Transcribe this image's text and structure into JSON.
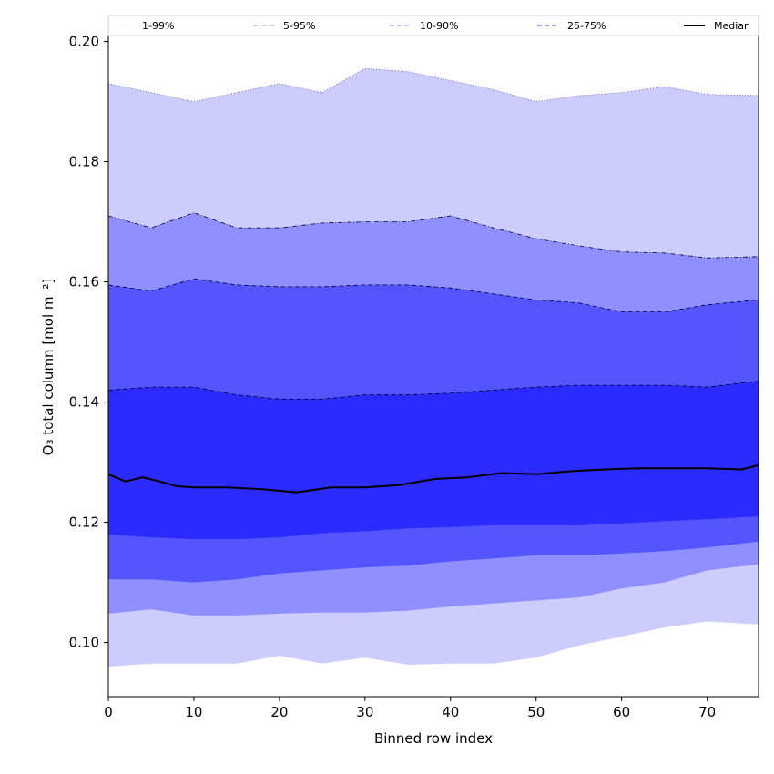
{
  "chart_data": {
    "type": "area",
    "xlabel": "Binned row index",
    "ylabel": "O₃ total column [mol m⁻²]",
    "xlim": [
      0,
      76
    ],
    "ylim": [
      0.091,
      0.201
    ],
    "x_ticks": [
      0,
      10,
      20,
      30,
      40,
      50,
      60,
      70
    ],
    "y_ticks": [
      0.1,
      0.12,
      0.14,
      0.16,
      0.18,
      0.2
    ],
    "y_tick_labels": [
      "0.10",
      "0.12",
      "0.14",
      "0.16",
      "0.18",
      "0.20"
    ],
    "legend_position": "top, spanning full width",
    "grid": false,
    "x_knots": [
      0,
      5,
      10,
      15,
      20,
      25,
      30,
      35,
      40,
      45,
      50,
      55,
      60,
      65,
      70,
      76
    ],
    "bands": [
      {
        "name": "1-99%",
        "color": "#ccccff",
        "line_style": "dotted",
        "lower": [
          0.096,
          0.0965,
          0.0965,
          0.0965,
          0.0978,
          0.0965,
          0.0975,
          0.0963,
          0.0965,
          0.0965,
          0.0975,
          0.0995,
          0.101,
          0.1025,
          0.1035,
          0.103
        ],
        "upper": [
          0.193,
          0.1915,
          0.19,
          0.1915,
          0.193,
          0.1915,
          0.1955,
          0.195,
          0.1935,
          0.192,
          0.19,
          0.191,
          0.1915,
          0.1925,
          0.1912,
          0.191
        ]
      },
      {
        "name": "5-95%",
        "color": "#8f8fff",
        "line_style": "dash-dot",
        "lower": [
          0.1048,
          0.1055,
          0.1045,
          0.1045,
          0.1048,
          0.105,
          0.105,
          0.1053,
          0.106,
          0.1065,
          0.107,
          0.1075,
          0.109,
          0.11,
          0.112,
          0.113
        ],
        "upper": [
          0.171,
          0.169,
          0.1715,
          0.169,
          0.169,
          0.1698,
          0.17,
          0.17,
          0.171,
          0.169,
          0.1672,
          0.166,
          0.165,
          0.1648,
          0.164,
          0.1642
        ]
      },
      {
        "name": "10-90%",
        "color": "#5555ff",
        "line_style": "dashed",
        "lower": [
          0.1105,
          0.1105,
          0.11,
          0.1105,
          0.1115,
          0.112,
          0.1125,
          0.1128,
          0.1135,
          0.114,
          0.1145,
          0.1145,
          0.1148,
          0.1152,
          0.1158,
          0.1168
        ],
        "upper": [
          0.1595,
          0.1585,
          0.1605,
          0.1595,
          0.1592,
          0.1592,
          0.1595,
          0.1595,
          0.159,
          0.158,
          0.157,
          0.1565,
          0.155,
          0.155,
          0.1562,
          0.157
        ]
      },
      {
        "name": "25-75%",
        "color": "#2b2bff",
        "line_style": "dashed",
        "lower": [
          0.118,
          0.1175,
          0.1172,
          0.1172,
          0.1175,
          0.1182,
          0.1185,
          0.119,
          0.1192,
          0.1195,
          0.1195,
          0.1195,
          0.1198,
          0.1202,
          0.1205,
          0.121
        ],
        "upper": [
          0.142,
          0.1425,
          0.1425,
          0.1412,
          0.1405,
          0.1405,
          0.1412,
          0.1412,
          0.1415,
          0.142,
          0.1425,
          0.1428,
          0.1428,
          0.1428,
          0.1425,
          0.1435
        ]
      }
    ],
    "series": [
      {
        "name": "Median",
        "color": "#000000",
        "x": [
          0,
          2,
          4,
          6,
          8,
          10,
          14,
          18,
          22,
          26,
          30,
          34,
          38,
          42,
          46,
          50,
          54,
          58,
          62,
          66,
          70,
          74,
          76
        ],
        "values": [
          0.128,
          0.1268,
          0.1275,
          0.1268,
          0.126,
          0.1258,
          0.1258,
          0.1255,
          0.125,
          0.1258,
          0.1258,
          0.1262,
          0.1272,
          0.1275,
          0.1282,
          0.128,
          0.1285,
          0.1288,
          0.129,
          0.129,
          0.129,
          0.1288,
          0.1295
        ]
      }
    ]
  }
}
